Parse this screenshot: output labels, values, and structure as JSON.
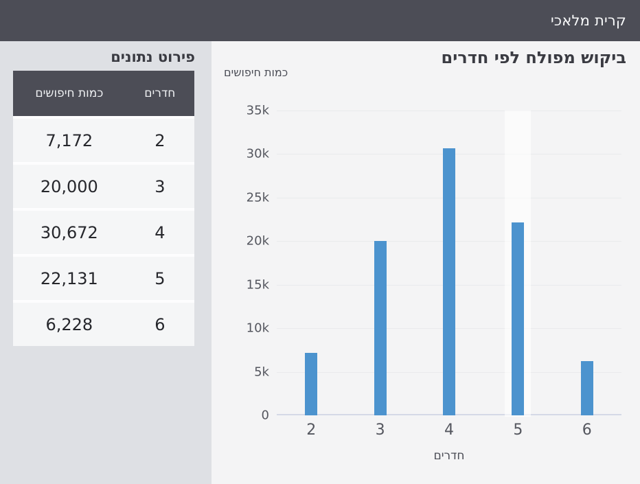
{
  "app_header": {
    "title": "קרית מלאכי"
  },
  "sidebar": {
    "title": "פירוט נתונים",
    "table": {
      "headers": {
        "rooms": "חדרים",
        "searches": "כמות חיפושים"
      },
      "rows": [
        {
          "rooms": "2",
          "searches": "7,172"
        },
        {
          "rooms": "3",
          "searches": "20,000"
        },
        {
          "rooms": "4",
          "searches": "30,672"
        },
        {
          "rooms": "5",
          "searches": "22,131"
        },
        {
          "rooms": "6",
          "searches": "6,228"
        }
      ]
    }
  },
  "chart_data": {
    "type": "bar",
    "title": "ביקוש מפולח לפי חדרים",
    "xlabel": "חדרים",
    "ylabel": "כמות חיפושים",
    "categories": [
      "2",
      "3",
      "4",
      "5",
      "6"
    ],
    "values": [
      7172,
      20000,
      30672,
      22131,
      6228
    ],
    "ylim": [
      0,
      35000
    ],
    "ytick_step": 5000,
    "ytick_labels": [
      "0",
      "5k",
      "10k",
      "15k",
      "20k",
      "25k",
      "30k",
      "35k"
    ],
    "grid": "horizontal",
    "legend": "none",
    "bar_color": "#4c93ce",
    "highlighted_category_index": 3
  },
  "colors": {
    "header_bg": "#4c4d56",
    "sidebar_bg": "#dee0e4",
    "panel_bg": "#f4f4f5",
    "row_bg": "#f5f6f7",
    "accent_blue": "#4c93ce",
    "baseline": "#d5d9e6"
  }
}
